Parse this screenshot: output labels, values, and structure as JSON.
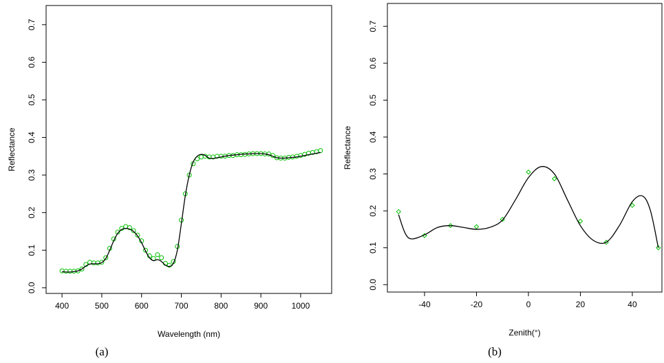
{
  "chart_data": [
    {
      "type": "line",
      "x_label": "Wavelength (nm)",
      "y_label": "Reflectance",
      "caption": "(a)",
      "xlim": [
        360,
        1078
      ],
      "ylim": [
        -0.015,
        0.751
      ],
      "xticks": [
        400,
        500,
        600,
        700,
        800,
        900,
        1000
      ],
      "yticks": [
        {
          "value": 0,
          "label": "0.0"
        },
        0.1,
        0.2,
        0.3,
        0.4,
        0.5,
        0.6,
        0.7
      ],
      "series": [
        {
          "color": "#00c000",
          "marker": "circle",
          "x": [
            400,
            410,
            420,
            430,
            440,
            450,
            460,
            470,
            480,
            490,
            500,
            510,
            520,
            530,
            540,
            550,
            560,
            570,
            580,
            590,
            600,
            610,
            620,
            630,
            640,
            650,
            660,
            670,
            680,
            690,
            700,
            710,
            720,
            730,
            740,
            750,
            760,
            770,
            780,
            790,
            800,
            810,
            820,
            830,
            840,
            850,
            860,
            870,
            880,
            890,
            900,
            910,
            920,
            930,
            940,
            950,
            960,
            970,
            980,
            990,
            1000,
            1010,
            1020,
            1030,
            1040,
            1050
          ],
          "values": [
            0.045,
            0.044,
            0.044,
            0.044,
            0.045,
            0.05,
            0.062,
            0.068,
            0.066,
            0.066,
            0.068,
            0.08,
            0.105,
            0.13,
            0.148,
            0.158,
            0.163,
            0.16,
            0.152,
            0.14,
            0.125,
            0.1,
            0.085,
            0.078,
            0.088,
            0.08,
            0.065,
            0.06,
            0.07,
            0.11,
            0.18,
            0.25,
            0.3,
            0.33,
            0.343,
            0.348,
            0.35,
            0.348,
            0.348,
            0.35,
            0.35,
            0.35,
            0.352,
            0.352,
            0.354,
            0.354,
            0.355,
            0.356,
            0.357,
            0.357,
            0.357,
            0.356,
            0.356,
            0.352,
            0.346,
            0.345,
            0.345,
            0.347,
            0.348,
            0.35,
            0.352,
            0.355,
            0.358,
            0.36,
            0.362,
            0.365
          ]
        },
        {
          "color": "#000000",
          "marker": "none",
          "x": [
            400,
            410,
            420,
            430,
            440,
            450,
            460,
            470,
            480,
            490,
            500,
            510,
            520,
            530,
            540,
            550,
            560,
            570,
            580,
            590,
            600,
            610,
            620,
            630,
            640,
            650,
            660,
            670,
            680,
            690,
            700,
            710,
            720,
            730,
            740,
            750,
            760,
            770,
            780,
            790,
            800,
            810,
            820,
            830,
            840,
            850,
            860,
            870,
            880,
            890,
            900,
            910,
            920,
            930,
            940,
            950,
            960,
            970,
            980,
            990,
            1000,
            1010,
            1020,
            1030,
            1040,
            1050
          ],
          "values": [
            0.043,
            0.042,
            0.042,
            0.043,
            0.045,
            0.05,
            0.058,
            0.063,
            0.064,
            0.064,
            0.067,
            0.078,
            0.1,
            0.125,
            0.145,
            0.155,
            0.158,
            0.156,
            0.15,
            0.138,
            0.12,
            0.098,
            0.08,
            0.072,
            0.075,
            0.07,
            0.06,
            0.057,
            0.065,
            0.1,
            0.17,
            0.245,
            0.3,
            0.335,
            0.35,
            0.355,
            0.352,
            0.345,
            0.344,
            0.346,
            0.348,
            0.35,
            0.352,
            0.353,
            0.354,
            0.355,
            0.356,
            0.356,
            0.357,
            0.357,
            0.357,
            0.356,
            0.354,
            0.35,
            0.346,
            0.345,
            0.345,
            0.346,
            0.347,
            0.348,
            0.35,
            0.352,
            0.354,
            0.356,
            0.358,
            0.36
          ]
        }
      ]
    },
    {
      "type": "line",
      "x_label": "Zenith(°)",
      "y_label": "Reflectance",
      "caption": "(b)",
      "xlim": [
        -54.3,
        51.4
      ],
      "ylim": [
        -0.02,
        0.762
      ],
      "xticks": [
        -40,
        -20,
        0,
        20,
        40
      ],
      "yticks": [
        {
          "value": 0,
          "label": "0.0"
        },
        0.1,
        0.2,
        0.3,
        0.4,
        0.5,
        0.6,
        0.7
      ],
      "series": [
        {
          "color": "#00c000",
          "marker": "diamond",
          "x": [
            -50,
            -40,
            -30,
            -20,
            -10,
            0,
            10,
            20,
            30,
            40,
            50
          ],
          "values": [
            0.198,
            0.133,
            0.16,
            0.157,
            0.177,
            0.305,
            0.287,
            0.172,
            0.115,
            0.215,
            0.1
          ]
        },
        {
          "color": "#000000",
          "marker": "none",
          "x": [
            -50,
            -47.5,
            -45,
            -40,
            -35,
            -30,
            -25,
            -20,
            -15,
            -10,
            -5,
            0,
            5,
            10,
            15,
            20,
            25,
            30,
            35,
            40,
            44,
            47,
            50
          ],
          "values": [
            0.19,
            0.14,
            0.124,
            0.135,
            0.155,
            0.16,
            0.155,
            0.15,
            0.155,
            0.175,
            0.23,
            0.29,
            0.32,
            0.3,
            0.23,
            0.16,
            0.12,
            0.115,
            0.16,
            0.225,
            0.24,
            0.2,
            0.1
          ]
        }
      ]
    }
  ]
}
